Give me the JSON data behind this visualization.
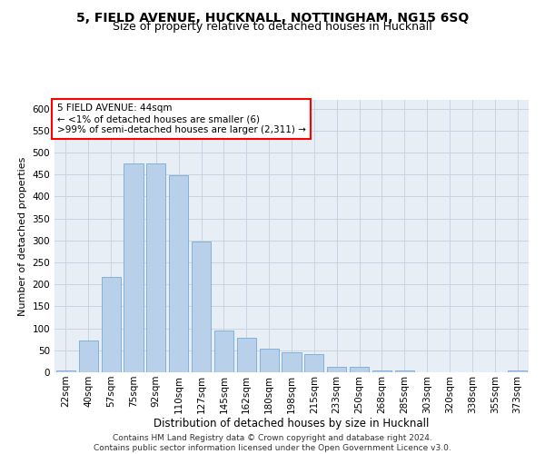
{
  "title1": "5, FIELD AVENUE, HUCKNALL, NOTTINGHAM, NG15 6SQ",
  "title2": "Size of property relative to detached houses in Hucknall",
  "xlabel": "Distribution of detached houses by size in Hucknall",
  "ylabel": "Number of detached properties",
  "categories": [
    "22sqm",
    "40sqm",
    "57sqm",
    "75sqm",
    "92sqm",
    "110sqm",
    "127sqm",
    "145sqm",
    "162sqm",
    "180sqm",
    "198sqm",
    "215sqm",
    "233sqm",
    "250sqm",
    "268sqm",
    "285sqm",
    "303sqm",
    "320sqm",
    "338sqm",
    "355sqm",
    "373sqm"
  ],
  "values": [
    5,
    72,
    218,
    475,
    475,
    448,
    297,
    95,
    79,
    54,
    46,
    41,
    13,
    12,
    5,
    5,
    0,
    0,
    0,
    0,
    5
  ],
  "bar_color": "#b8d0ea",
  "bar_edge_color": "#7aaad0",
  "annotation_box_text": "5 FIELD AVENUE: 44sqm\n← <1% of detached houses are smaller (6)\n>99% of semi-detached houses are larger (2,311) →",
  "annotation_box_color": "white",
  "annotation_box_edge_color": "red",
  "ylim": [
    0,
    620
  ],
  "yticks": [
    0,
    50,
    100,
    150,
    200,
    250,
    300,
    350,
    400,
    450,
    500,
    550,
    600
  ],
  "grid_color": "#c8d4e4",
  "background_color": "#e8eef6",
  "footer_text": "Contains HM Land Registry data © Crown copyright and database right 2024.\nContains public sector information licensed under the Open Government Licence v3.0.",
  "title1_fontsize": 10,
  "title2_fontsize": 9,
  "xlabel_fontsize": 8.5,
  "ylabel_fontsize": 8,
  "tick_fontsize": 7.5,
  "annotation_fontsize": 7.5,
  "footer_fontsize": 6.5
}
